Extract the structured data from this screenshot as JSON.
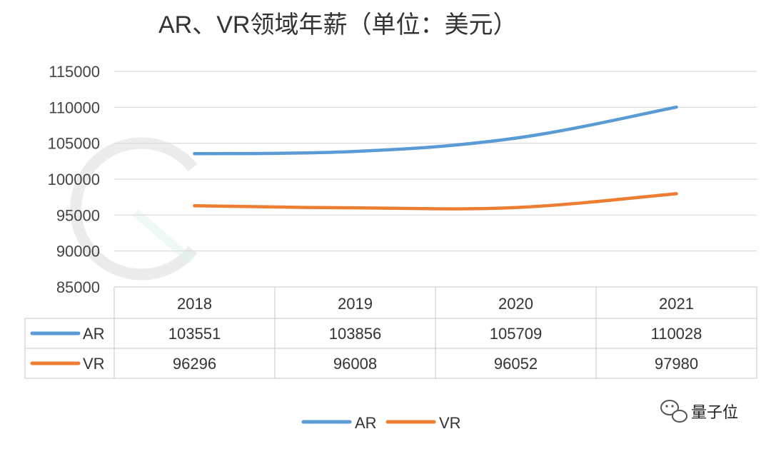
{
  "chart_data": {
    "type": "line",
    "title": "AR、VR领域年薪（单位：美元）",
    "categories": [
      "2018",
      "2019",
      "2020",
      "2021"
    ],
    "series": [
      {
        "name": "AR",
        "values": [
          103551,
          103856,
          105709,
          110028
        ],
        "color": "#5b9bd5"
      },
      {
        "name": "VR",
        "values": [
          96296,
          96008,
          96052,
          97980
        ],
        "color": "#ed7d31"
      }
    ],
    "ylim": [
      85000,
      115000
    ],
    "yticks": [
      85000,
      90000,
      95000,
      100000,
      105000,
      110000,
      115000
    ],
    "xlabel": "",
    "ylabel": "",
    "grid": true,
    "legend": "bottom-center",
    "data_table": true
  },
  "watermark": {
    "text": "量子位",
    "badge_icon": "wechat-icon"
  }
}
